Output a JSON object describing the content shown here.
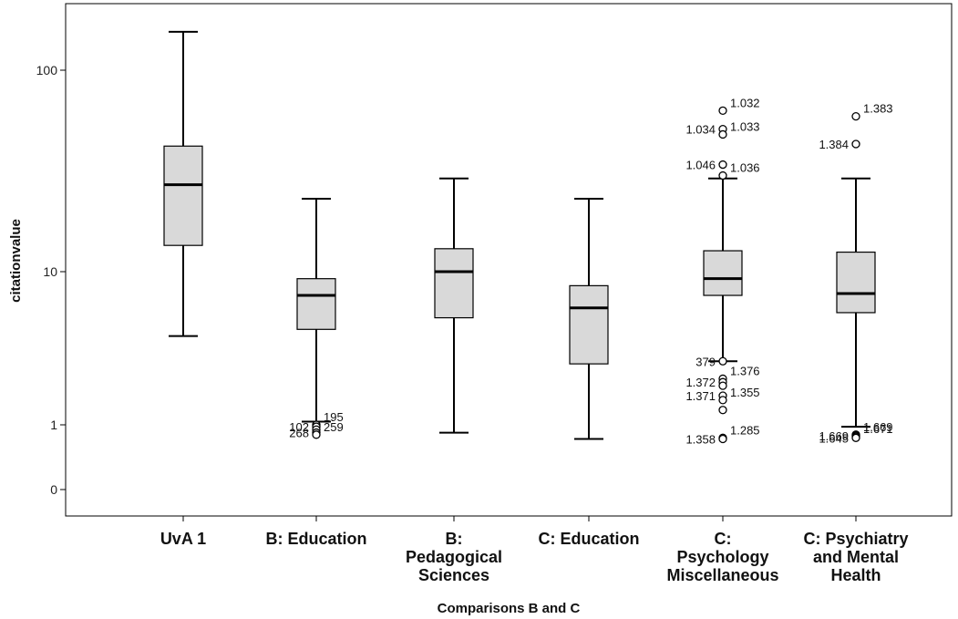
{
  "chart_data": {
    "type": "boxplot",
    "title": "",
    "xlabel": "Comparisons B and C",
    "ylabel": "citationvalue",
    "y_scale": "log",
    "y_ticks": [
      {
        "label": "100",
        "value": 100
      },
      {
        "label": "10",
        "value": 10
      },
      {
        "label": "1",
        "value": 1
      },
      {
        "label": "0",
        "value": 0
      }
    ],
    "grid": false,
    "categories": [
      {
        "label_lines": [
          "UvA 1"
        ],
        "whisker_low": 3.8,
        "q1": 13.5,
        "median": 27,
        "q3": 42,
        "whisker_high": 155,
        "outliers": []
      },
      {
        "label_lines": [
          "B: Education"
        ],
        "whisker_low": 1.05,
        "q1": 4.2,
        "median": 7,
        "q3": 9,
        "whisker_high": 23,
        "outliers": [
          {
            "value": 1.0,
            "label": "195"
          },
          {
            "value": 0.98,
            "label": "102"
          },
          {
            "value": 0.95,
            "label": ""
          },
          {
            "value": 0.92,
            "label": "268"
          },
          {
            "value": 0.9,
            "label": "259"
          }
        ]
      },
      {
        "label_lines": [
          "B:",
          "Pedagogical",
          "Sciences"
        ],
        "whisker_low": 0.92,
        "q1": 5,
        "median": 10,
        "q3": 13,
        "whisker_high": 29,
        "outliers": []
      },
      {
        "label_lines": [
          "C: Education"
        ],
        "whisker_low": 0.86,
        "q1": 2.5,
        "median": 5.8,
        "q3": 8.1,
        "whisker_high": 23,
        "outliers": []
      },
      {
        "label_lines": [
          "C:",
          "Psychology",
          "Miscellaneous"
        ],
        "whisker_low": 2.6,
        "q1": 7,
        "median": 9,
        "q3": 12.7,
        "whisker_high": 29,
        "outliers": [
          {
            "value": 63,
            "label": "1.032"
          },
          {
            "value": 51,
            "label": "1.034"
          },
          {
            "value": 48,
            "label": "1.033"
          },
          {
            "value": 34,
            "label": "1.046"
          },
          {
            "value": 30,
            "label": "1.036"
          },
          {
            "value": 2.6,
            "label": "379"
          },
          {
            "value": 2.0,
            "label": "1.376"
          },
          {
            "value": 1.9,
            "label": "1.372"
          },
          {
            "value": 1.8,
            "label": ""
          },
          {
            "value": 1.55,
            "label": "1.371"
          },
          {
            "value": 1.45,
            "label": "1.355"
          },
          {
            "value": 1.25,
            "label": ""
          },
          {
            "value": 0.87,
            "label": "1.285"
          },
          {
            "value": 0.86,
            "label": "1.358"
          }
        ]
      },
      {
        "label_lines": [
          "C: Psychiatry",
          "and Mental",
          "Health"
        ],
        "whisker_low": 0.98,
        "q1": 5.4,
        "median": 7.2,
        "q3": 12.5,
        "whisker_high": 29,
        "outliers": [
          {
            "value": 59,
            "label": "1.383"
          },
          {
            "value": 43,
            "label": "1.384"
          },
          {
            "value": 0.9,
            "label": "1.669"
          },
          {
            "value": 0.89,
            "label": "1.669"
          },
          {
            "value": 0.88,
            "label": "1.671"
          },
          {
            "value": 0.87,
            "label": "1.645"
          }
        ]
      }
    ]
  }
}
